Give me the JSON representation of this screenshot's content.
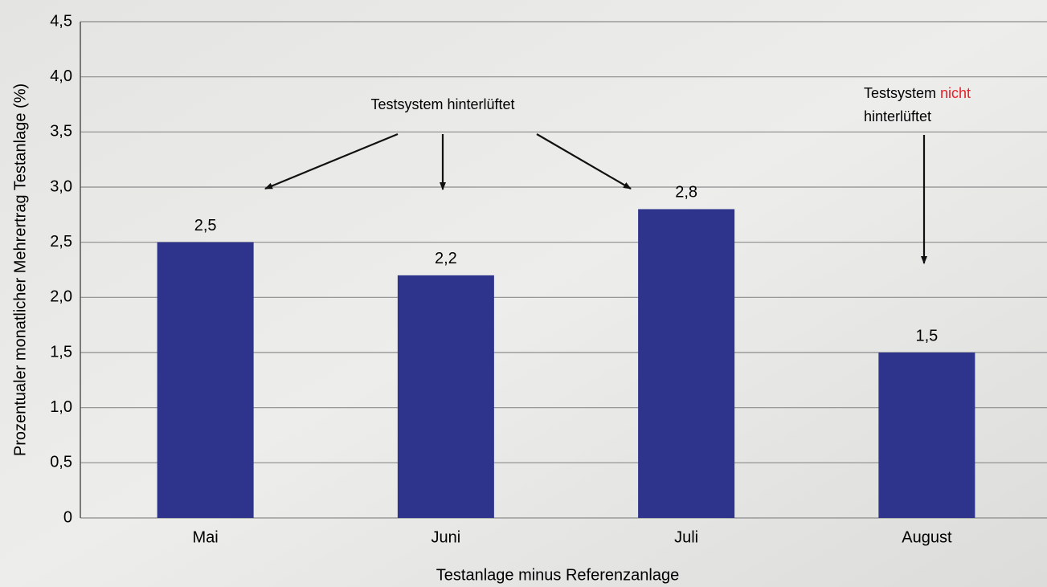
{
  "chart_data": {
    "type": "bar",
    "categories": [
      "Mai",
      "Juni",
      "Juli",
      "August"
    ],
    "values": [
      2.5,
      2.2,
      2.8,
      1.5
    ],
    "value_labels": [
      "2,5",
      "2,2",
      "2,8",
      "1,5"
    ],
    "color": "#2e338c",
    "ylabel": "Prozentualer monatlicher Mehrertrag Testanlage (%)",
    "xlabel": "Testanlage minus Referenzanlage",
    "ylim": [
      0,
      4.5
    ],
    "yticks": [
      0,
      {
        "value": 0.5,
        "label": "0,5"
      },
      {
        "value": 1.0,
        "label": "1,0"
      },
      {
        "value": 1.5,
        "label": "1,5"
      },
      {
        "value": 2.0,
        "label": "2,0"
      },
      {
        "value": 2.5,
        "label": "2,5"
      },
      {
        "value": 3.0,
        "label": "3,0"
      },
      {
        "value": 3.5,
        "label": "3,5"
      },
      {
        "value": 4.0,
        "label": "4,0"
      },
      {
        "value": 4.5,
        "label": "4,5"
      }
    ],
    "grid": true,
    "annotations": [
      {
        "text": "Testsystem hinterlüftet"
      },
      {
        "lines": [
          "Testsystem",
          "nicht",
          "hinterlüftet"
        ],
        "highlight_color": "#e8202a"
      }
    ]
  }
}
